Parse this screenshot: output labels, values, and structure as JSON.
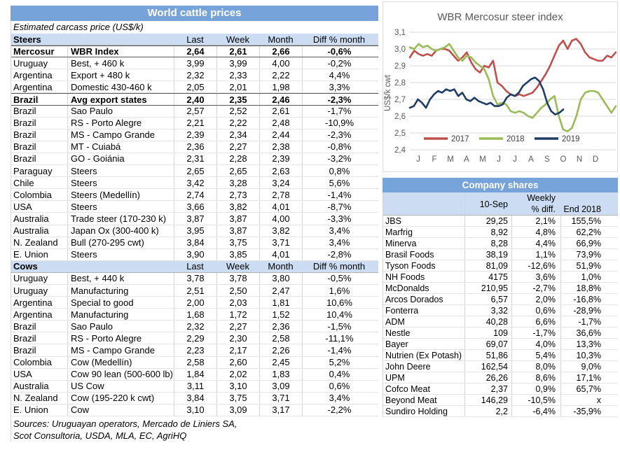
{
  "colors": {
    "header_blue": "#76a3da",
    "light_blue": "#cbdcf3",
    "series_red": "#c0504d",
    "series_green": "#9bbb59",
    "series_navy": "#1f3c68"
  },
  "left_table": {
    "title": "World cattle prices",
    "subtitle": "Estimated carcass price (US$/k)",
    "columns": [
      "Last",
      "Week",
      "Month",
      "Diff % month"
    ],
    "sections": [
      {
        "name": "Steers",
        "rows": [
          {
            "country": "Mercosur",
            "desc": "WBR Index",
            "values": [
              "2,64",
              "2,61",
              "2,66",
              "-0,6%"
            ],
            "bold": true
          },
          {
            "country": "Uruguay",
            "desc": "Best, + 460 k",
            "values": [
              "3,99",
              "3,99",
              "4,00",
              "-0,2%"
            ],
            "bold": false
          },
          {
            "country": "Argentina",
            "desc": "Export + 480 k",
            "values": [
              "2,32",
              "2,33",
              "2,22",
              "4,4%"
            ],
            "bold": false
          },
          {
            "country": "Argentina",
            "desc": "Domestic 430-460 k",
            "values": [
              "2,05",
              "2,01",
              "1,98",
              "3,3%"
            ],
            "bold": false
          },
          {
            "country": "Brazil",
            "desc": "Avg export states",
            "values": [
              "2,40",
              "2,35",
              "2,46",
              "-2,3%"
            ],
            "bold": true
          },
          {
            "country": "Brazil",
            "desc": "Sao Paulo",
            "values": [
              "2,57",
              "2,52",
              "2,61",
              "-1,7%"
            ],
            "bold": false
          },
          {
            "country": "Brazil",
            "desc": "RS - Porto Alegre",
            "values": [
              "2,21",
              "2,22",
              "2,48",
              "-10,9%"
            ],
            "bold": false
          },
          {
            "country": "Brazil",
            "desc": "MS - Campo Grande",
            "values": [
              "2,39",
              "2,34",
              "2,44",
              "-2,3%"
            ],
            "bold": false
          },
          {
            "country": "Brazil",
            "desc": "MT - Cuiabá",
            "values": [
              "2,36",
              "2,27",
              "2,38",
              "-0,8%"
            ],
            "bold": false
          },
          {
            "country": "Brazil",
            "desc": "GO - Goiánia",
            "values": [
              "2,31",
              "2,28",
              "2,39",
              "-3,2%"
            ],
            "bold": false
          },
          {
            "country": "Paraguay",
            "desc": "Steers",
            "values": [
              "2,65",
              "2,65",
              "2,63",
              "0,8%"
            ],
            "bold": false
          },
          {
            "country": "Chile",
            "desc": "Steers",
            "values": [
              "3,42",
              "3,28",
              "3,24",
              "5,6%"
            ],
            "bold": false
          },
          {
            "country": "Colombia",
            "desc": "Steers (Medellín)",
            "values": [
              "2,74",
              "2,73",
              "2,78",
              "-1,4%"
            ],
            "bold": false
          },
          {
            "country": "USA",
            "desc": "Steers",
            "values": [
              "3,66",
              "3,82",
              "4,01",
              "-8,7%"
            ],
            "bold": false
          },
          {
            "country": "Australia",
            "desc": "Trade steer (170-230 k)",
            "values": [
              "3,87",
              "3,87",
              "4,00",
              "-3,3%"
            ],
            "bold": false
          },
          {
            "country": "Australia",
            "desc": "Japan Ox (300-400 k)",
            "values": [
              "3,95",
              "3,87",
              "3,82",
              "3,4%"
            ],
            "bold": false
          },
          {
            "country": "N. Zealand",
            "desc": "Bull (270-295 cwt)",
            "values": [
              "3,84",
              "3,75",
              "3,71",
              "3,4%"
            ],
            "bold": false
          },
          {
            "country": "E. Union",
            "desc": "Steers",
            "values": [
              "3,90",
              "3,85",
              "4,01",
              "-2,8%"
            ],
            "bold": false
          }
        ]
      },
      {
        "name": "Cows",
        "rows": [
          {
            "country": "Uruguay",
            "desc": "Best, + 440 k",
            "values": [
              "3,78",
              "3,78",
              "3,80",
              "-0,5%"
            ],
            "bold": false
          },
          {
            "country": "Uruguay",
            "desc": "Manufacturing",
            "values": [
              "2,51",
              "2,50",
              "2,47",
              "1,6%"
            ],
            "bold": false
          },
          {
            "country": "Argentina",
            "desc": "Special to good",
            "values": [
              "2,00",
              "2,03",
              "1,81",
              "10,6%"
            ],
            "bold": false
          },
          {
            "country": "Argentina",
            "desc": "Manufacturing",
            "values": [
              "1,68",
              "1,72",
              "1,52",
              "10,4%"
            ],
            "bold": false
          },
          {
            "country": "Brazil",
            "desc": "Sao Paulo",
            "values": [
              "2,32",
              "2,27",
              "2,36",
              "-1,5%"
            ],
            "bold": false
          },
          {
            "country": "Brazil",
            "desc": "RS - Porto Alegre",
            "values": [
              "2,29",
              "2,30",
              "2,58",
              "-11,1%"
            ],
            "bold": false
          },
          {
            "country": "Brazil",
            "desc": "MS - Campo Grande",
            "values": [
              "2,23",
              "2,17",
              "2,26",
              "-1,4%"
            ],
            "bold": false
          },
          {
            "country": "Colombia",
            "desc": "Cow (Medellín)",
            "values": [
              "2,58",
              "2,60",
              "2,45",
              "5,2%"
            ],
            "bold": false
          },
          {
            "country": "USA",
            "desc": "Cow 90 lean (500-600 lb)",
            "values": [
              "1,84",
              "2,02",
              "1,83",
              "0,4%"
            ],
            "bold": false
          },
          {
            "country": "Australia",
            "desc": "US Cow",
            "values": [
              "3,11",
              "3,10",
              "3,09",
              "0,6%"
            ],
            "bold": false
          },
          {
            "country": "N. Zealand",
            "desc": "Cow (195-220 k cwt)",
            "values": [
              "3,84",
              "3,75",
              "3,71",
              "3,4%"
            ],
            "bold": false
          },
          {
            "country": "E. Union",
            "desc": "Cow",
            "values": [
              "3,10",
              "3,09",
              "3,17",
              "-2,2%"
            ],
            "bold": false
          }
        ]
      }
    ],
    "sources": [
      "Sources: Uruguayan operators, Mercado de Liniers SA,",
      "Scot Consultoria, USDA, MLA, EC, AgriHQ"
    ]
  },
  "chart_data": {
    "type": "line",
    "title": "WBR Mercosur steer index",
    "ylabel": "US$/k cwt",
    "ylim": [
      2.4,
      3.1
    ],
    "yticks": [
      "3,1",
      "3,0",
      "2,9",
      "2,8",
      "2,7",
      "2,6",
      "2,5",
      "2,4"
    ],
    "x_labels": [
      "J",
      "F",
      "M",
      "A",
      "M",
      "J",
      "J",
      "A",
      "S",
      "O",
      "N",
      "D"
    ],
    "grid": true,
    "legend_position": "bottom-left-inside",
    "series": [
      {
        "name": "2017",
        "color": "#c0504d",
        "span": 1.0,
        "values": [
          2.95,
          2.99,
          2.97,
          2.96,
          2.97,
          2.96,
          2.99,
          3.0,
          3.0,
          2.99,
          2.96,
          2.93,
          2.95,
          2.98,
          2.92,
          2.88,
          2.86,
          2.9,
          2.89,
          2.93,
          2.8,
          2.78,
          2.75,
          2.73,
          2.72,
          2.73,
          2.72,
          2.73,
          2.74,
          2.77,
          2.81,
          2.85,
          2.9,
          2.96,
          3.02,
          3.05,
          3.0,
          3.05,
          3.06,
          3.03,
          2.98,
          2.95,
          2.94,
          2.93,
          2.93,
          2.96,
          2.95,
          2.98
        ]
      },
      {
        "name": "2018",
        "color": "#9bbb59",
        "span": 1.0,
        "values": [
          3.01,
          3.0,
          3.03,
          3.01,
          3.02,
          3.0,
          2.99,
          3.0,
          3.01,
          3.03,
          2.99,
          2.95,
          2.93,
          2.96,
          2.95,
          2.92,
          2.9,
          2.88,
          2.82,
          2.72,
          2.67,
          2.68,
          2.67,
          2.63,
          2.62,
          2.63,
          2.62,
          2.6,
          2.59,
          2.62,
          2.65,
          2.67,
          2.7,
          2.72,
          2.6,
          2.52,
          2.51,
          2.53,
          2.6,
          2.7,
          2.74,
          2.75,
          2.75,
          2.74,
          2.7,
          2.66,
          2.62,
          2.66
        ]
      },
      {
        "name": "2019",
        "color": "#1f3c68",
        "span": 0.745,
        "values": [
          2.65,
          2.66,
          2.7,
          2.68,
          2.65,
          2.7,
          2.73,
          2.75,
          2.74,
          2.76,
          2.75,
          2.76,
          2.72,
          2.74,
          2.7,
          2.69,
          2.71,
          2.69,
          2.68,
          2.67,
          2.68,
          2.66,
          2.66,
          2.67,
          2.71,
          2.73,
          2.72,
          2.74,
          2.78,
          2.8,
          2.82,
          2.83,
          2.81,
          2.76,
          2.68,
          2.63,
          2.61,
          2.62,
          2.64
        ]
      }
    ]
  },
  "company_shares": {
    "title": "Company shares",
    "header": {
      "price": "10-Sep",
      "weekly_line1": "Weekly",
      "weekly_line2": "% diff.",
      "end": "End 2018"
    },
    "rows": [
      {
        "name": "JBS",
        "price": "29,25",
        "weekly": "2,1%",
        "end": "155,5%"
      },
      {
        "name": "Marfrig",
        "price": "8,92",
        "weekly": "4,8%",
        "end": "62,2%"
      },
      {
        "name": "Minerva",
        "price": "8,28",
        "weekly": "4,4%",
        "end": "66,9%"
      },
      {
        "name": "Brasil Foods",
        "price": "38,19",
        "weekly": "1,1%",
        "end": "73,9%"
      },
      {
        "name": "Tyson Foods",
        "price": "81,09",
        "weekly": "-12,6%",
        "end": "51,9%"
      },
      {
        "name": "NH Foods",
        "price": "4175",
        "weekly": "3,6%",
        "end": "1,0%"
      },
      {
        "name": "McDonalds",
        "price": "210,95",
        "weekly": "-2,7%",
        "end": "18,8%"
      },
      {
        "name": "Arcos Dorados",
        "price": "6,57",
        "weekly": "2,0%",
        "end": "-16,8%"
      },
      {
        "name": "Fonterra",
        "price": "3,32",
        "weekly": "0,6%",
        "end": "-28,9%"
      },
      {
        "name": "ADM",
        "price": "40,28",
        "weekly": "6,6%",
        "end": "-1,7%"
      },
      {
        "name": "Nestle",
        "price": "109",
        "weekly": "-1,7%",
        "end": "36,6%"
      },
      {
        "name": "Bayer",
        "price": "69,07",
        "weekly": "4,0%",
        "end": "13,3%"
      },
      {
        "name": "Nutrien (Ex Potash)",
        "price": "51,86",
        "weekly": "5,4%",
        "end": "10,3%"
      },
      {
        "name": "John Deere",
        "price": "162,54",
        "weekly": "8,0%",
        "end": "9,0%"
      },
      {
        "name": "UPM",
        "price": "26,26",
        "weekly": "8,6%",
        "end": "17,1%"
      },
      {
        "name": "Cofco Meat",
        "price": "2,37",
        "weekly": "0,9%",
        "end": "65,7%"
      },
      {
        "name": "Beyond Meat",
        "price": "146,29",
        "weekly": "-10,5%",
        "end": "x"
      },
      {
        "name": "Sundiro Holding",
        "price": "2,2",
        "weekly": "-6,4%",
        "end": "-35,9%"
      }
    ]
  }
}
